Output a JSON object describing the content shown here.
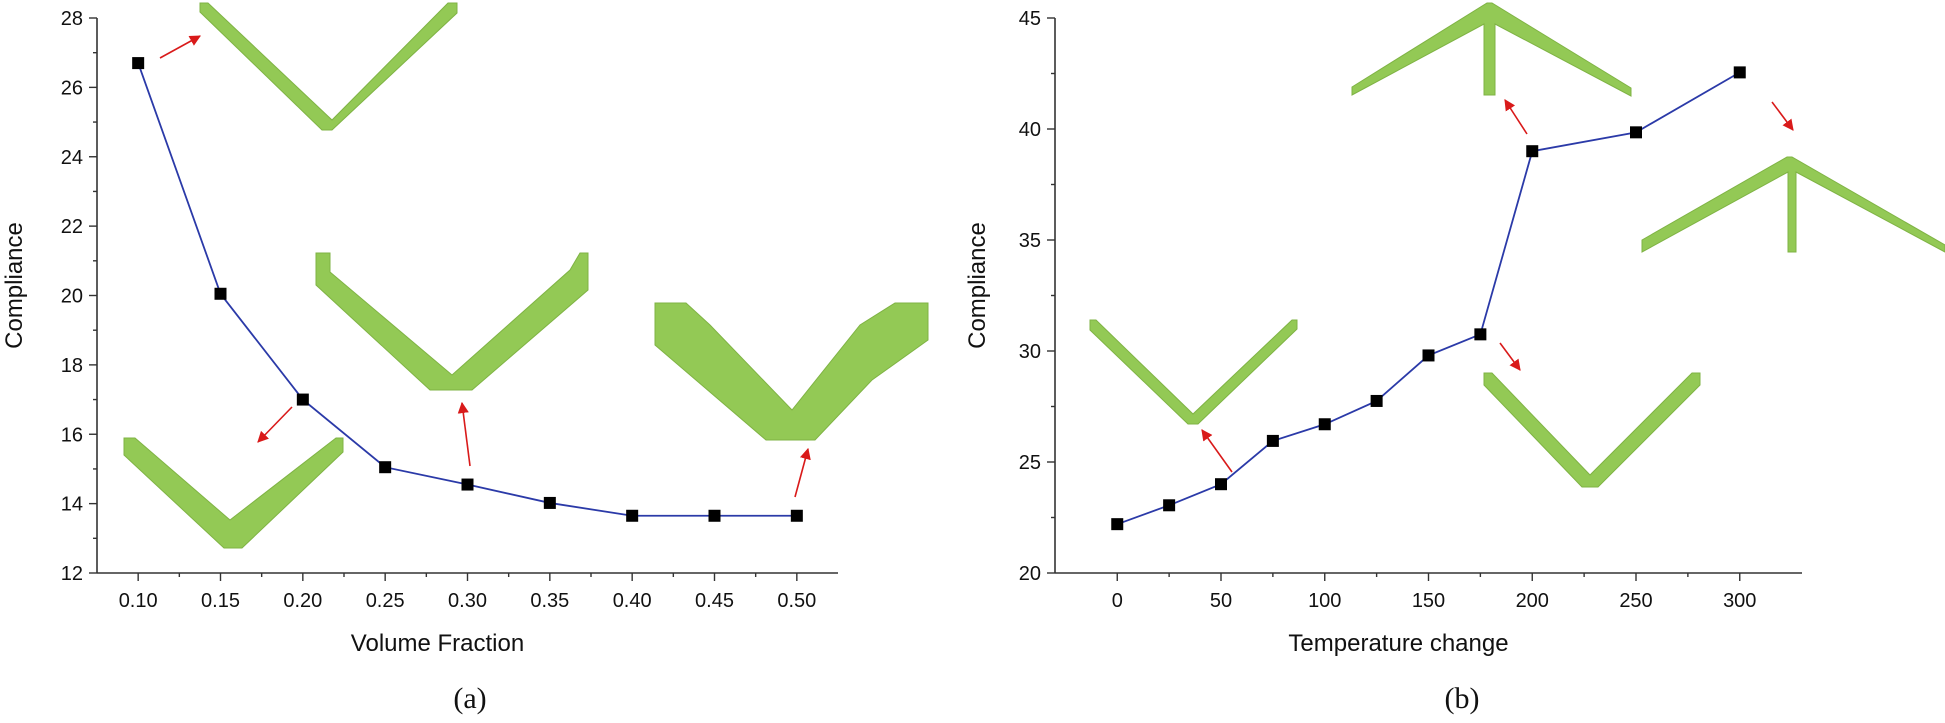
{
  "chart_data": [
    {
      "type": "line",
      "panel_label": "(a)",
      "title": "",
      "xlabel": "Volume Fraction",
      "ylabel": "Compliance",
      "xlim": [
        0.075,
        0.525
      ],
      "ylim": [
        12,
        28
      ],
      "x_ticks": [
        "0.10",
        "0.15",
        "0.20",
        "0.25",
        "0.30",
        "0.35",
        "0.40",
        "0.45",
        "0.50"
      ],
      "y_ticks": [
        "12",
        "14",
        "16",
        "18",
        "20",
        "22",
        "24",
        "26",
        "28"
      ],
      "x": [
        0.1,
        0.15,
        0.2,
        0.25,
        0.3,
        0.35,
        0.4,
        0.45,
        0.5
      ],
      "y": [
        26.7,
        20.05,
        17.0,
        15.05,
        14.55,
        14.02,
        13.65,
        13.65,
        13.65
      ],
      "line_color": "#2b3aa8",
      "marker_color": "#000000",
      "shape_color": "#93c955",
      "arrow_color": "#d91a1a"
    },
    {
      "type": "line",
      "panel_label": "(b)",
      "title": "",
      "xlabel": "Temperature change",
      "ylabel": "Compliance",
      "xlim": [
        -30,
        330
      ],
      "ylim": [
        20,
        45
      ],
      "x_ticks": [
        "0",
        "50",
        "100",
        "150",
        "200",
        "250",
        "300"
      ],
      "y_ticks": [
        "20",
        "25",
        "30",
        "35",
        "40",
        "45"
      ],
      "x": [
        0,
        25,
        50,
        75,
        100,
        125,
        150,
        175,
        200,
        250,
        300
      ],
      "y": [
        22.2,
        23.05,
        24.0,
        25.95,
        26.7,
        27.75,
        29.8,
        30.75,
        39.0,
        39.85,
        42.55
      ],
      "line_color": "#2b3aa8",
      "marker_color": "#000000",
      "shape_color": "#93c955",
      "arrow_color": "#d91a1a"
    }
  ]
}
